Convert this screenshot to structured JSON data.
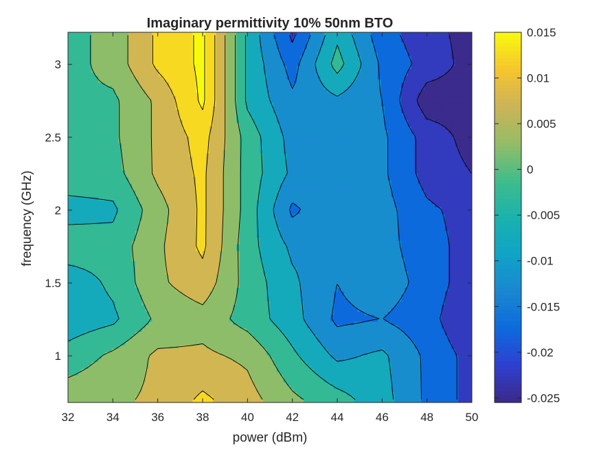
{
  "chart_data": {
    "type": "contourf",
    "title": "Imaginary permittivity 10% 50nm BTO",
    "xlabel": "power (dBm)",
    "ylabel": "frequency (GHz)",
    "xlim": [
      32,
      50
    ],
    "ylim": [
      0.68,
      3.22
    ],
    "x_ticks": [
      32,
      34,
      36,
      38,
      40,
      42,
      44,
      46,
      48,
      50
    ],
    "y_ticks": [
      1,
      1.5,
      2,
      2.5,
      3
    ],
    "x_tick_labels": [
      "32",
      "34",
      "36",
      "38",
      "40",
      "42",
      "44",
      "46",
      "48",
      "50"
    ],
    "y_tick_labels": [
      "1",
      "1.5",
      "2",
      "2.5",
      "3"
    ],
    "x": [
      32,
      34,
      36,
      38,
      40,
      42,
      44,
      46,
      48,
      50
    ],
    "y": [
      0.7,
      1.0,
      1.25,
      1.5,
      1.75,
      2.0,
      2.25,
      2.5,
      2.75,
      3.0,
      3.2
    ],
    "z": [
      [
        0.003,
        0.004,
        0.006,
        0.011,
        0.007,
        0.001,
        -0.003,
        -0.008,
        -0.016,
        -0.022
      ],
      [
        -0.003,
        0.001,
        0.006,
        0.006,
        0.004,
        -0.004,
        -0.011,
        -0.009,
        -0.016,
        -0.022
      ],
      [
        -0.008,
        -0.006,
        0.001,
        0.003,
        -0.002,
        -0.008,
        -0.016,
        -0.015,
        -0.018,
        -0.025
      ],
      [
        -0.008,
        -0.004,
        0.004,
        0.008,
        -0.002,
        -0.009,
        -0.015,
        -0.012,
        -0.017,
        -0.023
      ],
      [
        -0.002,
        -0.003,
        0.004,
        0.011,
        -0.003,
        -0.011,
        -0.011,
        -0.013,
        -0.018,
        -0.022
      ],
      [
        -0.007,
        -0.006,
        0.003,
        0.011,
        -0.002,
        -0.016,
        -0.011,
        -0.013,
        -0.019,
        -0.022
      ],
      [
        -0.002,
        -0.002,
        0.006,
        0.011,
        -0.002,
        -0.011,
        -0.012,
        -0.014,
        -0.022,
        -0.025
      ],
      [
        -0.001,
        -0.001,
        0.006,
        0.012,
        -0.002,
        -0.012,
        -0.013,
        -0.014,
        -0.022,
        -0.027
      ],
      [
        -0.001,
        -0.001,
        0.006,
        0.016,
        -0.006,
        -0.014,
        -0.011,
        -0.015,
        -0.028,
        -0.027
      ],
      [
        -0.002,
        0.002,
        0.011,
        0.016,
        -0.006,
        -0.017,
        -0.003,
        -0.016,
        -0.022,
        -0.027
      ],
      [
        -0.002,
        0.002,
        0.011,
        0.016,
        -0.006,
        -0.021,
        -0.006,
        -0.018,
        -0.023,
        -0.027
      ]
    ],
    "levels": [
      -0.025,
      -0.02,
      -0.015,
      -0.01,
      -0.005,
      0,
      0.005,
      0.01,
      0.015
    ],
    "colormap": [
      "#3b2a88",
      "#2f3fd0",
      "#0c6bdd",
      "#1a87d0",
      "#10a3c7",
      "#1bb2ad",
      "#40bd8a",
      "#95bd66",
      "#ccb357",
      "#f7c52e",
      "#f8fa0e"
    ],
    "colorbar": {
      "ticks": [
        0.015,
        0.01,
        0.005,
        0,
        -0.005,
        -0.01,
        -0.015,
        -0.02,
        -0.025
      ],
      "tick_labels": [
        "0.015",
        "0.01",
        "0.005",
        "0",
        "-0.005",
        "-0.01",
        "-0.015",
        "-0.02",
        "-0.025"
      ],
      "range": [
        -0.0255,
        0.015
      ]
    },
    "grid": false,
    "colorbar_placement": "right"
  }
}
